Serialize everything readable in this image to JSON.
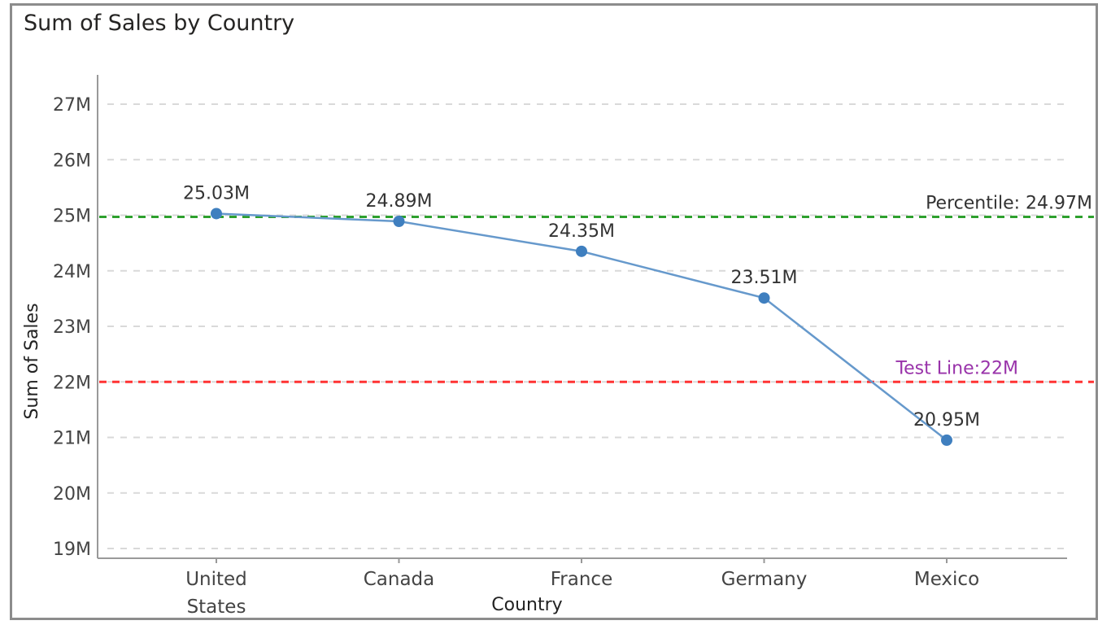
{
  "colors": {
    "line": "#6699cc",
    "marker": "#3f7fbf",
    "grid": "#d9d9d9",
    "axis": "#999999",
    "percentile_line": "#2ea02e",
    "test_line": "#ff3333",
    "test_label": "#9933aa",
    "percentile_label": "#333333"
  },
  "chart_data": {
    "type": "line",
    "title": "Sum of Sales by Country",
    "xlabel": "Country",
    "ylabel": "Sum of Sales",
    "categories": [
      "United States",
      "Canada",
      "France",
      "Germany",
      "Mexico"
    ],
    "category_lines": [
      [
        "United",
        "States"
      ],
      [
        "Canada"
      ],
      [
        "France"
      ],
      [
        "Germany"
      ],
      [
        "Mexico"
      ]
    ],
    "values": [
      25.03,
      24.89,
      24.35,
      23.51,
      20.95
    ],
    "value_unit": "M",
    "data_labels": [
      "25.03M",
      "24.89M",
      "24.35M",
      "23.51M",
      "20.95M"
    ],
    "ylim": [
      19,
      27
    ],
    "yticks": [
      19,
      20,
      21,
      22,
      23,
      24,
      25,
      26,
      27
    ],
    "ytick_labels": [
      "19M",
      "20M",
      "21M",
      "22M",
      "23M",
      "24M",
      "25M",
      "26M",
      "27M"
    ],
    "grid": true,
    "reference_lines": [
      {
        "value": 24.97,
        "label": "Percentile: 24.97M"
      },
      {
        "value": 22,
        "label": "Test Line:22M"
      }
    ]
  }
}
